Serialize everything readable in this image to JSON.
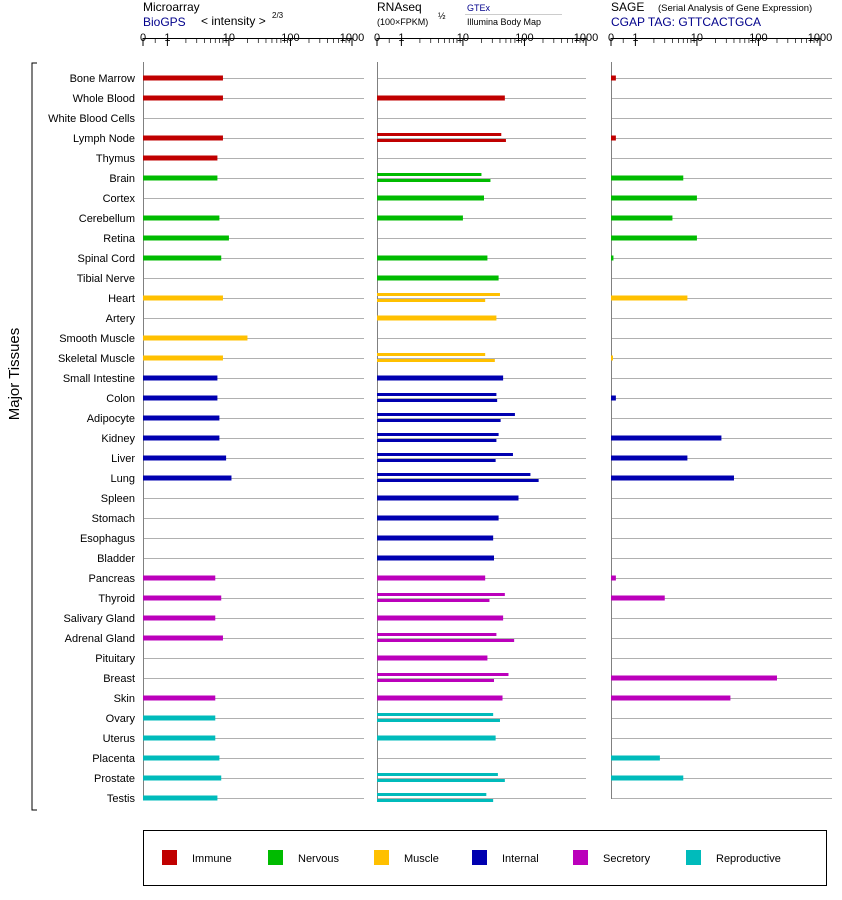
{
  "chart_data": {
    "type": "bar",
    "orientation": "horizontal",
    "y_axis_label": "Major Tissues",
    "categories": [
      "Bone Marrow",
      "Whole Blood",
      "White Blood Cells",
      "Lymph Node",
      "Thymus",
      "Brain",
      "Cortex",
      "Cerebellum",
      "Retina",
      "Spinal Cord",
      "Tibial Nerve",
      "Heart",
      "Artery",
      "Smooth Muscle",
      "Skeletal Muscle",
      "Small Intestine",
      "Colon",
      "Adipocyte",
      "Kidney",
      "Liver",
      "Lung",
      "Spleen",
      "Stomach",
      "Esophagus",
      "Bladder",
      "Pancreas",
      "Thyroid",
      "Salivary Gland",
      "Adrenal Gland",
      "Pituitary",
      "Breast",
      "Skin",
      "Ovary",
      "Uterus",
      "Placenta",
      "Prostate",
      "Testis"
    ],
    "category_group": [
      "Immune",
      "Immune",
      "Immune",
      "Immune",
      "Immune",
      "Nervous",
      "Nervous",
      "Nervous",
      "Nervous",
      "Nervous",
      "Nervous",
      "Muscle",
      "Muscle",
      "Muscle",
      "Muscle",
      "Internal",
      "Internal",
      "Internal",
      "Internal",
      "Internal",
      "Internal",
      "Internal",
      "Internal",
      "Internal",
      "Internal",
      "Secretory",
      "Secretory",
      "Secretory",
      "Secretory",
      "Secretory",
      "Secretory",
      "Secretory",
      "Reproductive",
      "Reproductive",
      "Reproductive",
      "Reproductive",
      "Reproductive"
    ],
    "groups": [
      {
        "name": "Immune",
        "color": "#c00000"
      },
      {
        "name": "Nervous",
        "color": "#00bb00"
      },
      {
        "name": "Muscle",
        "color": "#ffc000"
      },
      {
        "name": "Internal",
        "color": "#0000b0"
      },
      {
        "name": "Secretory",
        "color": "#bb00bb"
      },
      {
        "name": "Reproductive",
        "color": "#00bbbb"
      }
    ],
    "legend_position": "bottom",
    "panels": [
      {
        "title": "Microarray",
        "subtitle": "BioGPS",
        "scale_label": "< intensity >",
        "scale_exponent": "2/3",
        "ticks": [
          "0",
          "1",
          "10",
          "100",
          "1000"
        ],
        "tick_values": [
          0,
          1,
          10,
          100,
          1000
        ],
        "xlim": [
          0,
          1000
        ],
        "values": [
          [
            8
          ],
          [
            8
          ],
          [],
          [
            8
          ],
          [
            6.5
          ],
          [
            6.5
          ],
          [],
          [
            7
          ],
          [
            10
          ],
          [
            7.5
          ],
          [],
          [
            8
          ],
          [],
          [
            20
          ],
          [
            8
          ],
          [
            6.5
          ],
          [
            6.5
          ],
          [
            7
          ],
          [
            7
          ],
          [
            9
          ],
          [
            11
          ],
          [],
          [],
          [],
          [],
          [
            6
          ],
          [
            7.5
          ],
          [
            6
          ],
          [
            8
          ],
          [],
          [],
          [
            6
          ],
          [
            6
          ],
          [
            6
          ],
          [
            7
          ],
          [
            7.5
          ],
          [
            6.5
          ]
        ]
      },
      {
        "title": "RNAseq",
        "scale_label": "(100×FPKM)",
        "scale_exponent": "½",
        "legend_top": "GTEx",
        "legend_bottom": "Illumina Body Map",
        "ticks": [
          "0",
          "1",
          "10",
          "100",
          "1000"
        ],
        "tick_values": [
          0,
          1,
          10,
          100,
          1000
        ],
        "xlim": [
          0,
          1000
        ],
        "values": [
          [],
          [
            48
          ],
          [],
          [
            42,
            50
          ],
          [],
          [
            20,
            28
          ],
          [
            22
          ],
          [
            10
          ],
          [],
          [
            25
          ],
          [
            38
          ],
          [
            40,
            23
          ],
          [
            35
          ],
          [],
          [
            23,
            33
          ],
          [
            45
          ],
          [
            35,
            36
          ],
          [
            70,
            41
          ],
          [
            38,
            35
          ],
          [
            65,
            34
          ],
          [
            125,
            170
          ],
          [
            80
          ],
          [
            38
          ],
          [
            31
          ],
          [
            32
          ],
          [
            23
          ],
          [
            48,
            27
          ],
          [
            45
          ],
          [
            35,
            68
          ],
          [
            25
          ],
          [
            55,
            32
          ],
          [
            44
          ],
          [
            31,
            40
          ],
          [
            34
          ],
          [],
          [
            37,
            48
          ],
          [
            24,
            31
          ]
        ]
      },
      {
        "title": "SAGE",
        "title_note": "(Serial Analysis of Gene Expression)",
        "subtitle": "CGAP TAG: GTTCACTGCA",
        "ticks": [
          "0",
          "1",
          "10",
          "100",
          "1000"
        ],
        "tick_values": [
          0,
          1,
          10,
          100,
          1000
        ],
        "xlim": [
          0,
          1000
        ],
        "values": [
          [
            0.2
          ],
          [],
          [],
          [
            0.2
          ],
          [],
          [
            6
          ],
          [
            10
          ],
          [
            4
          ],
          [
            10
          ],
          [
            0.1
          ],
          [],
          [
            7
          ],
          [],
          [],
          [
            0.05
          ],
          [],
          [
            0.2
          ],
          [],
          [
            25
          ],
          [
            7
          ],
          [
            40
          ],
          [],
          [],
          [],
          [],
          [
            0.2
          ],
          [
            3
          ],
          [],
          [],
          [],
          [
            200
          ],
          [
            35
          ],
          [],
          [],
          [
            2.5
          ],
          [
            6
          ],
          []
        ]
      }
    ]
  }
}
